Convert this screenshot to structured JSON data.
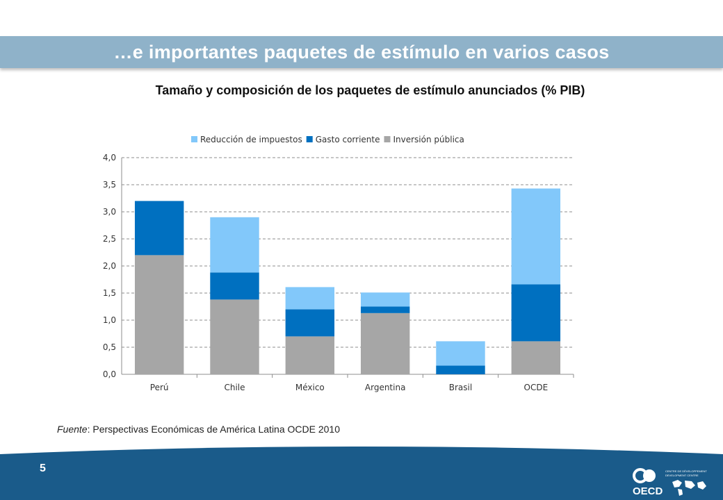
{
  "slide": {
    "title": "…e importantes paquetes de estímulo en varios casos",
    "page_number": "5",
    "source_label": "Fuente",
    "source_text": ": Perspectivas Económicas de América Latina OCDE 2010",
    "logo_text": "OECD",
    "logo_subtext_left": "CENTRE DE DÉVELOPPEMENT",
    "logo_subtext_right": "DEVELOPMENT CENTRE"
  },
  "chart_data": {
    "type": "bar",
    "stacked": true,
    "title": "Tamaño y composición de los paquetes de estímulo anunciados (% PIB)",
    "categories": [
      "Perú",
      "Chile",
      "México",
      "Argentina",
      "Brasil",
      "OCDE"
    ],
    "series": [
      {
        "name": "Inversión pública",
        "color": "#a6a6a6",
        "values": [
          2.2,
          1.38,
          0.7,
          1.13,
          0.0,
          0.61
        ]
      },
      {
        "name": "Gasto corriente",
        "color": "#0070c0",
        "values": [
          1.0,
          0.5,
          0.5,
          0.12,
          0.16,
          1.05
        ]
      },
      {
        "name": "Reducción de impuestos",
        "color": "#82c8fa",
        "values": [
          0.0,
          1.02,
          0.41,
          0.26,
          0.45,
          1.77
        ]
      }
    ],
    "legend_order": [
      "Reducción de impuestos",
      "Gasto corriente",
      "Inversión pública"
    ],
    "ylim": [
      0,
      4.0
    ],
    "yticks": [
      "0,0",
      "0,5",
      "1,0",
      "1,5",
      "2,0",
      "2,5",
      "3,0",
      "3,5",
      "4,0"
    ],
    "grid": true,
    "legend_position": "top"
  }
}
